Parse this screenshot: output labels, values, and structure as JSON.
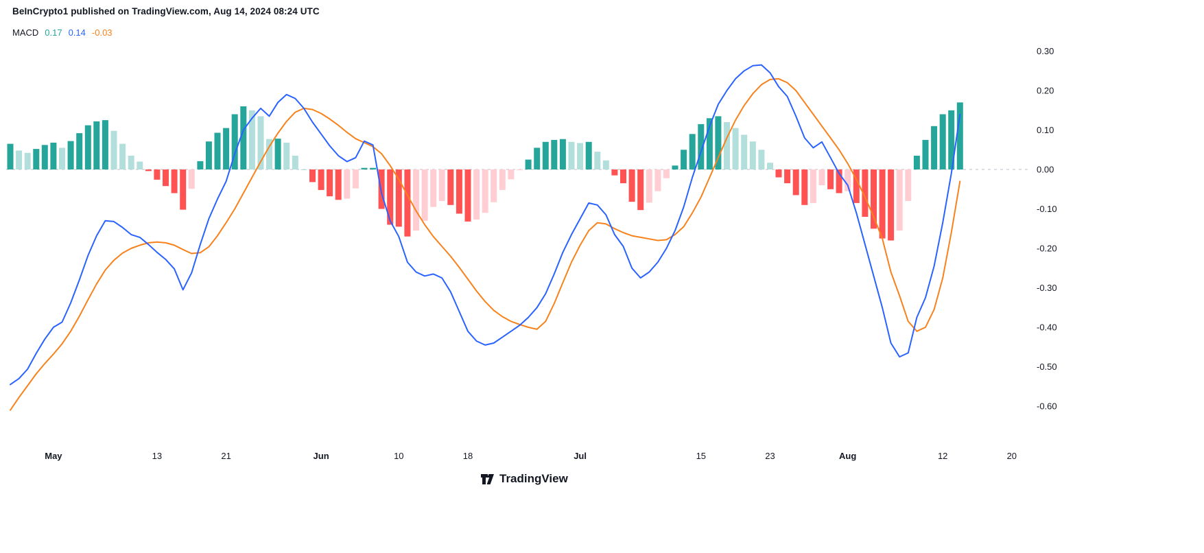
{
  "header": {
    "attribution": "BeInCrypto1 published on TradingView.com, Aug 14, 2024 08:24 UTC",
    "indicator": {
      "name": "MACD",
      "values": [
        {
          "name": "histogram",
          "text": "0.17",
          "color": "#26A69A"
        },
        {
          "name": "macd",
          "text": "0.14",
          "color": "#2962FF"
        },
        {
          "name": "signal",
          "text": "-0.03",
          "color": "#F7821C"
        }
      ]
    }
  },
  "footer": {
    "brand": "TradingView"
  },
  "axes": {
    "y_ticks": [
      {
        "label": "0.30",
        "value": 0.3
      },
      {
        "label": "0.20",
        "value": 0.2
      },
      {
        "label": "0.10",
        "value": 0.1
      },
      {
        "label": "0.00",
        "value": 0.0
      },
      {
        "label": "-0.10",
        "value": -0.1
      },
      {
        "label": "-0.20",
        "value": -0.2
      },
      {
        "label": "-0.30",
        "value": -0.3
      },
      {
        "label": "-0.40",
        "value": -0.4
      },
      {
        "label": "-0.50",
        "value": -0.5
      },
      {
        "label": "-0.60",
        "value": -0.6
      }
    ],
    "x_ticks": [
      {
        "label": "May",
        "day": 5,
        "bold": true
      },
      {
        "label": "13",
        "day": 17
      },
      {
        "label": "21",
        "day": 25
      },
      {
        "label": "Jun",
        "day": 36,
        "bold": true
      },
      {
        "label": "10",
        "day": 45
      },
      {
        "label": "18",
        "day": 53
      },
      {
        "label": "Jul",
        "day": 66,
        "bold": true
      },
      {
        "label": "15",
        "day": 80
      },
      {
        "label": "23",
        "day": 88
      },
      {
        "label": "Aug",
        "day": 97,
        "bold": true
      },
      {
        "label": "12",
        "day": 108
      },
      {
        "label": "20",
        "day": 116
      }
    ]
  },
  "chart_data": {
    "type": "line+bar",
    "title": "MACD indicator pane (histogram = macd - signal)",
    "frequency": "daily",
    "start_date": "2024-04-26",
    "end_date": "2024-08-14",
    "x_domain_days": [
      0,
      118
    ],
    "ylim": [
      -0.645,
      0.325
    ],
    "grid": false,
    "zero_line": {
      "value": 0,
      "style": "dashed"
    },
    "last_values": {
      "histogram": 0.17,
      "macd": 0.14,
      "signal": -0.03
    },
    "colors": {
      "macd": "#2962FF",
      "signal": "#F7821C",
      "histogram_rising_above": "#26A69A",
      "histogram_falling_above": "#B2DFDB",
      "histogram_falling_below": "#FF5252",
      "histogram_rising_below": "#FFCDD2",
      "zero_line": "#B8BCC7",
      "axis_text": "#131722"
    },
    "macd": [
      -0.545,
      -0.53,
      -0.506,
      -0.466,
      -0.43,
      -0.4,
      -0.387,
      -0.338,
      -0.28,
      -0.218,
      -0.168,
      -0.13,
      -0.132,
      -0.147,
      -0.165,
      -0.172,
      -0.19,
      -0.21,
      -0.228,
      -0.252,
      -0.305,
      -0.262,
      -0.19,
      -0.125,
      -0.075,
      -0.03,
      0.04,
      0.1,
      0.13,
      0.155,
      0.135,
      0.17,
      0.19,
      0.18,
      0.155,
      0.12,
      0.09,
      0.06,
      0.035,
      0.02,
      0.03,
      0.072,
      0.062,
      -0.06,
      -0.13,
      -0.17,
      -0.235,
      -0.26,
      -0.27,
      -0.265,
      -0.275,
      -0.31,
      -0.36,
      -0.41,
      -0.435,
      -0.445,
      -0.44,
      -0.425,
      -0.41,
      -0.395,
      -0.375,
      -0.35,
      -0.315,
      -0.265,
      -0.21,
      -0.165,
      -0.125,
      -0.085,
      -0.09,
      -0.115,
      -0.165,
      -0.195,
      -0.25,
      -0.275,
      -0.26,
      -0.235,
      -0.2,
      -0.155,
      -0.095,
      -0.02,
      0.045,
      0.11,
      0.165,
      0.2,
      0.23,
      0.25,
      0.263,
      0.265,
      0.245,
      0.21,
      0.185,
      0.135,
      0.08,
      0.055,
      0.07,
      0.03,
      -0.01,
      -0.04,
      -0.11,
      -0.19,
      -0.27,
      -0.35,
      -0.44,
      -0.475,
      -0.465,
      -0.375,
      -0.325,
      -0.245,
      -0.135,
      -0.01,
      0.14
    ],
    "signal": [
      -0.61,
      -0.578,
      -0.548,
      -0.518,
      -0.492,
      -0.468,
      -0.442,
      -0.41,
      -0.372,
      -0.33,
      -0.29,
      -0.255,
      -0.23,
      -0.212,
      -0.2,
      -0.192,
      -0.186,
      -0.184,
      -0.186,
      -0.192,
      -0.203,
      -0.213,
      -0.211,
      -0.196,
      -0.168,
      -0.135,
      -0.1,
      -0.06,
      -0.02,
      0.02,
      0.058,
      0.092,
      0.122,
      0.145,
      0.155,
      0.152,
      0.142,
      0.128,
      0.112,
      0.094,
      0.078,
      0.068,
      0.058,
      0.04,
      0.01,
      -0.025,
      -0.065,
      -0.105,
      -0.14,
      -0.17,
      -0.195,
      -0.22,
      -0.248,
      -0.278,
      -0.308,
      -0.335,
      -0.357,
      -0.373,
      -0.385,
      -0.393,
      -0.4,
      -0.405,
      -0.385,
      -0.34,
      -0.287,
      -0.235,
      -0.192,
      -0.155,
      -0.135,
      -0.138,
      -0.15,
      -0.16,
      -0.168,
      -0.172,
      -0.176,
      -0.18,
      -0.178,
      -0.165,
      -0.145,
      -0.11,
      -0.07,
      -0.02,
      0.03,
      0.08,
      0.125,
      0.162,
      0.192,
      0.215,
      0.228,
      0.23,
      0.22,
      0.2,
      0.17,
      0.14,
      0.11,
      0.08,
      0.05,
      0.015,
      -0.025,
      -0.07,
      -0.12,
      -0.175,
      -0.26,
      -0.32,
      -0.385,
      -0.41,
      -0.4,
      -0.355,
      -0.275,
      -0.16,
      -0.03
    ],
    "histogram_rule": "histogram[i] = macd[i] - signal[i]"
  }
}
